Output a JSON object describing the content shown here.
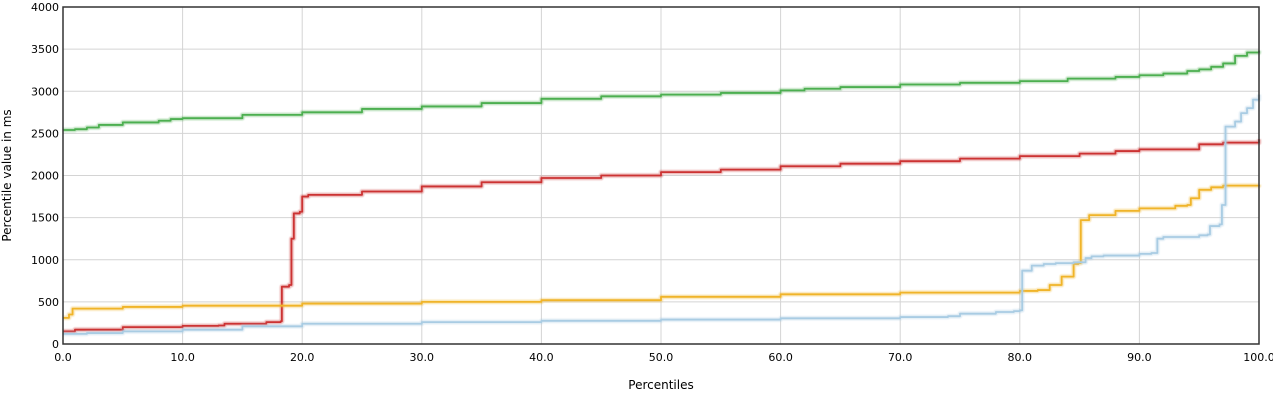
{
  "chart_data": {
    "type": "line",
    "xlabel": "Percentiles",
    "ylabel": "Percentile value in ms",
    "xlim": [
      0,
      100
    ],
    "ylim": [
      0,
      4000
    ],
    "grid": true,
    "x_ticks": [
      "0.0",
      "10.0",
      "20.0",
      "30.0",
      "40.0",
      "50.0",
      "60.0",
      "70.0",
      "80.0",
      "90.0",
      "100.0"
    ],
    "y_ticks": [
      "0",
      "500",
      "1000",
      "1500",
      "2000",
      "2500",
      "3000",
      "3500",
      "4000"
    ],
    "series": [
      {
        "color": "#4caf50",
        "points": [
          [
            0,
            2540
          ],
          [
            1,
            2550
          ],
          [
            2,
            2570
          ],
          [
            3,
            2600
          ],
          [
            5,
            2630
          ],
          [
            8,
            2650
          ],
          [
            9,
            2670
          ],
          [
            10,
            2680
          ],
          [
            15,
            2720
          ],
          [
            20,
            2750
          ],
          [
            25,
            2790
          ],
          [
            30,
            2820
          ],
          [
            35,
            2860
          ],
          [
            40,
            2910
          ],
          [
            45,
            2940
          ],
          [
            50,
            2960
          ],
          [
            55,
            2980
          ],
          [
            60,
            3010
          ],
          [
            62,
            3030
          ],
          [
            65,
            3050
          ],
          [
            70,
            3080
          ],
          [
            75,
            3100
          ],
          [
            80,
            3120
          ],
          [
            84,
            3150
          ],
          [
            88,
            3170
          ],
          [
            90,
            3190
          ],
          [
            92,
            3210
          ],
          [
            94,
            3240
          ],
          [
            95,
            3260
          ],
          [
            96,
            3290
          ],
          [
            97,
            3330
          ],
          [
            98,
            3420
          ],
          [
            99,
            3460
          ],
          [
            100,
            3480
          ]
        ]
      },
      {
        "color": "#cc3333",
        "points": [
          [
            0,
            150
          ],
          [
            1,
            170
          ],
          [
            5,
            200
          ],
          [
            10,
            215
          ],
          [
            13,
            220
          ],
          [
            13.5,
            240
          ],
          [
            17,
            260
          ],
          [
            18.2,
            270
          ],
          [
            18.3,
            680
          ],
          [
            18.9,
            700
          ],
          [
            19.1,
            1250
          ],
          [
            19.3,
            1550
          ],
          [
            19.8,
            1570
          ],
          [
            20,
            1750
          ],
          [
            20.5,
            1770
          ],
          [
            25,
            1810
          ],
          [
            30,
            1870
          ],
          [
            35,
            1920
          ],
          [
            40,
            1970
          ],
          [
            45,
            2000
          ],
          [
            50,
            2040
          ],
          [
            55,
            2070
          ],
          [
            60,
            2110
          ],
          [
            65,
            2140
          ],
          [
            70,
            2170
          ],
          [
            75,
            2200
          ],
          [
            80,
            2230
          ],
          [
            85,
            2260
          ],
          [
            88,
            2290
          ],
          [
            90,
            2310
          ],
          [
            95,
            2370
          ],
          [
            97,
            2390
          ],
          [
            100,
            2430
          ]
        ]
      },
      {
        "color": "#f0b429",
        "points": [
          [
            0,
            310
          ],
          [
            0.5,
            350
          ],
          [
            0.8,
            420
          ],
          [
            5,
            440
          ],
          [
            10,
            455
          ],
          [
            20,
            480
          ],
          [
            30,
            500
          ],
          [
            40,
            520
          ],
          [
            50,
            560
          ],
          [
            60,
            590
          ],
          [
            70,
            610
          ],
          [
            80,
            630
          ],
          [
            81.5,
            640
          ],
          [
            82.5,
            700
          ],
          [
            83.5,
            800
          ],
          [
            84.5,
            950
          ],
          [
            84.9,
            960
          ],
          [
            85.1,
            1470
          ],
          [
            85.8,
            1530
          ],
          [
            88,
            1580
          ],
          [
            90,
            1610
          ],
          [
            93,
            1640
          ],
          [
            94,
            1650
          ],
          [
            94.3,
            1730
          ],
          [
            95,
            1830
          ],
          [
            96,
            1860
          ],
          [
            97,
            1880
          ],
          [
            100,
            1890
          ]
        ]
      },
      {
        "color": "#a9cce3",
        "points": [
          [
            0,
            120
          ],
          [
            2,
            130
          ],
          [
            5,
            150
          ],
          [
            10,
            170
          ],
          [
            15,
            210
          ],
          [
            20,
            240
          ],
          [
            30,
            260
          ],
          [
            40,
            275
          ],
          [
            50,
            290
          ],
          [
            60,
            305
          ],
          [
            70,
            320
          ],
          [
            74,
            330
          ],
          [
            75,
            360
          ],
          [
            78,
            380
          ],
          [
            79.5,
            390
          ],
          [
            80,
            400
          ],
          [
            80.2,
            870
          ],
          [
            81,
            930
          ],
          [
            82,
            950
          ],
          [
            83,
            960
          ],
          [
            84.5,
            970
          ],
          [
            85.5,
            1020
          ],
          [
            86,
            1040
          ],
          [
            87,
            1050
          ],
          [
            90,
            1070
          ],
          [
            91,
            1080
          ],
          [
            91.5,
            1250
          ],
          [
            92,
            1270
          ],
          [
            95,
            1290
          ],
          [
            95.7,
            1300
          ],
          [
            95.9,
            1400
          ],
          [
            96.7,
            1420
          ],
          [
            96.9,
            1650
          ],
          [
            97.2,
            2580
          ],
          [
            98,
            2640
          ],
          [
            98.5,
            2740
          ],
          [
            99,
            2800
          ],
          [
            99.5,
            2900
          ],
          [
            100,
            2960
          ]
        ]
      }
    ]
  }
}
